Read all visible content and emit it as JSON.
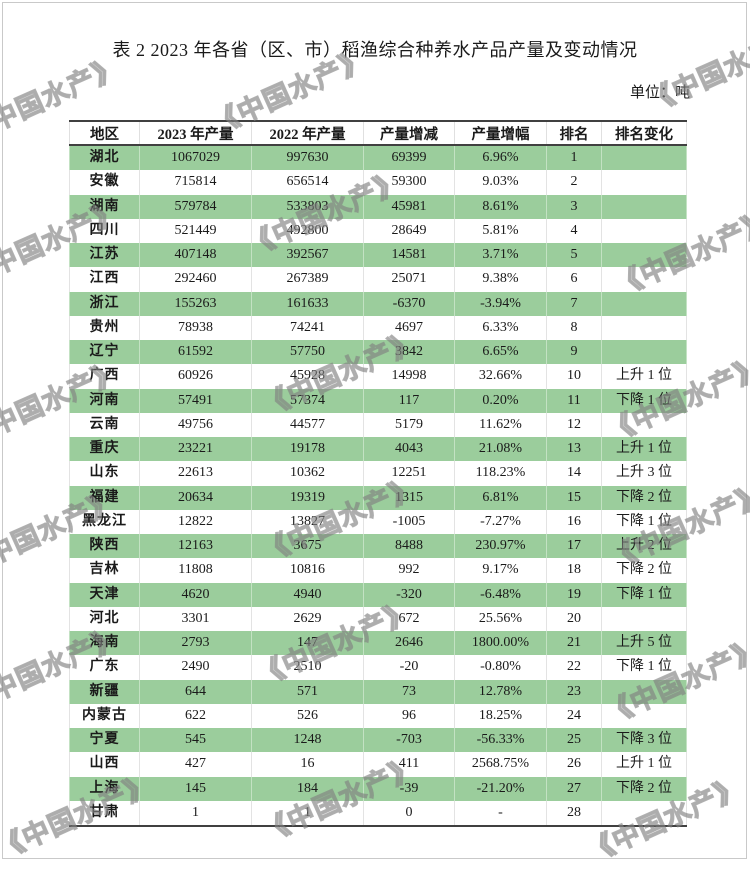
{
  "page": {
    "title": "表 2 2023 年各省（区、市）稻渔综合种养水产品产量及变动情况",
    "unit_label": "单位：吨",
    "watermark_text": "《中国水产》"
  },
  "colors": {
    "row_highlight": "#9bcd9c",
    "table_border": "#404040"
  },
  "table": {
    "headers": [
      "地区",
      "2023 年产量",
      "2022 年产量",
      "产量增减",
      "产量增幅",
      "排名",
      "排名变化"
    ],
    "rows": [
      [
        "湖北",
        "1067029",
        "997630",
        "69399",
        "6.96%",
        "1",
        ""
      ],
      [
        "安徽",
        "715814",
        "656514",
        "59300",
        "9.03%",
        "2",
        ""
      ],
      [
        "湖南",
        "579784",
        "533803",
        "45981",
        "8.61%",
        "3",
        ""
      ],
      [
        "四川",
        "521449",
        "492800",
        "28649",
        "5.81%",
        "4",
        ""
      ],
      [
        "江苏",
        "407148",
        "392567",
        "14581",
        "3.71%",
        "5",
        ""
      ],
      [
        "江西",
        "292460",
        "267389",
        "25071",
        "9.38%",
        "6",
        ""
      ],
      [
        "浙江",
        "155263",
        "161633",
        "-6370",
        "-3.94%",
        "7",
        ""
      ],
      [
        "贵州",
        "78938",
        "74241",
        "4697",
        "6.33%",
        "8",
        ""
      ],
      [
        "辽宁",
        "61592",
        "57750",
        "3842",
        "6.65%",
        "9",
        ""
      ],
      [
        "广西",
        "60926",
        "45928",
        "14998",
        "32.66%",
        "10",
        "上升 1 位"
      ],
      [
        "河南",
        "57491",
        "57374",
        "117",
        "0.20%",
        "11",
        "下降 1 位"
      ],
      [
        "云南",
        "49756",
        "44577",
        "5179",
        "11.62%",
        "12",
        ""
      ],
      [
        "重庆",
        "23221",
        "19178",
        "4043",
        "21.08%",
        "13",
        "上升 1 位"
      ],
      [
        "山东",
        "22613",
        "10362",
        "12251",
        "118.23%",
        "14",
        "上升 3 位"
      ],
      [
        "福建",
        "20634",
        "19319",
        "1315",
        "6.81%",
        "15",
        "下降 2 位"
      ],
      [
        "黑龙江",
        "12822",
        "13827",
        "-1005",
        "-7.27%",
        "16",
        "下降 1 位"
      ],
      [
        "陕西",
        "12163",
        "3675",
        "8488",
        "230.97%",
        "17",
        "上升 2 位"
      ],
      [
        "吉林",
        "11808",
        "10816",
        "992",
        "9.17%",
        "18",
        "下降 2 位"
      ],
      [
        "天津",
        "4620",
        "4940",
        "-320",
        "-6.48%",
        "19",
        "下降 1 位"
      ],
      [
        "河北",
        "3301",
        "2629",
        "672",
        "25.56%",
        "20",
        ""
      ],
      [
        "海南",
        "2793",
        "147",
        "2646",
        "1800.00%",
        "21",
        "上升 5 位"
      ],
      [
        "广东",
        "2490",
        "2510",
        "-20",
        "-0.80%",
        "22",
        "下降 1 位"
      ],
      [
        "新疆",
        "644",
        "571",
        "73",
        "12.78%",
        "23",
        ""
      ],
      [
        "内蒙古",
        "622",
        "526",
        "96",
        "18.25%",
        "24",
        ""
      ],
      [
        "宁夏",
        "545",
        "1248",
        "-703",
        "-56.33%",
        "25",
        "下降 3 位"
      ],
      [
        "山西",
        "427",
        "16",
        "411",
        "2568.75%",
        "26",
        "上升 1 位"
      ],
      [
        "上海",
        "145",
        "184",
        "-39",
        "-21.20%",
        "27",
        "下降 2 位"
      ],
      [
        "甘肃",
        "1",
        "1",
        "0",
        "-",
        "28",
        ""
      ]
    ]
  }
}
